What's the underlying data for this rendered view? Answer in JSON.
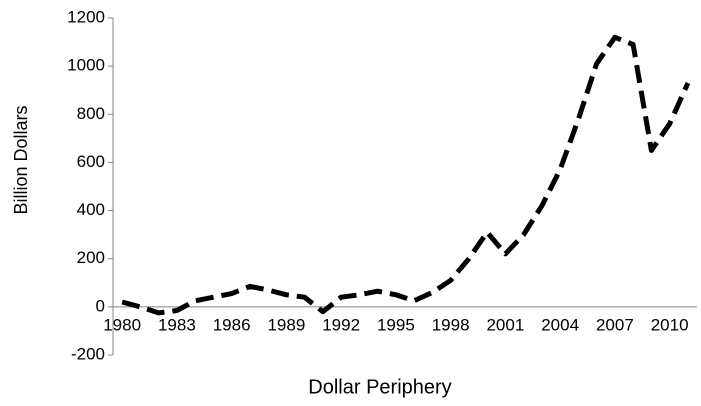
{
  "chart_data": {
    "type": "line",
    "x_label": "Dollar Periphery",
    "y_label": "Billion Dollars",
    "categories": [
      "1980",
      null,
      null,
      "1983",
      null,
      null,
      "1986",
      null,
      null,
      "1989",
      null,
      null,
      "1992",
      null,
      null,
      "1995",
      null,
      null,
      "1998",
      null,
      null,
      "2001",
      null,
      null,
      "2004",
      null,
      null,
      "2007",
      null,
      null,
      "2010",
      null
    ],
    "series": [
      {
        "name": "Dollar Periphery",
        "color": "#000000",
        "values": [
          20,
          0,
          -25,
          -15,
          25,
          40,
          55,
          85,
          70,
          50,
          40,
          -20,
          40,
          50,
          65,
          50,
          25,
          60,
          110,
          200,
          310,
          220,
          300,
          420,
          570,
          780,
          1010,
          1120,
          1090,
          650,
          760,
          930
        ]
      }
    ],
    "ylim": [
      -200,
      1200
    ],
    "yticks": [
      -200,
      0,
      200,
      400,
      600,
      800,
      1000,
      1200
    ],
    "grid": false
  }
}
